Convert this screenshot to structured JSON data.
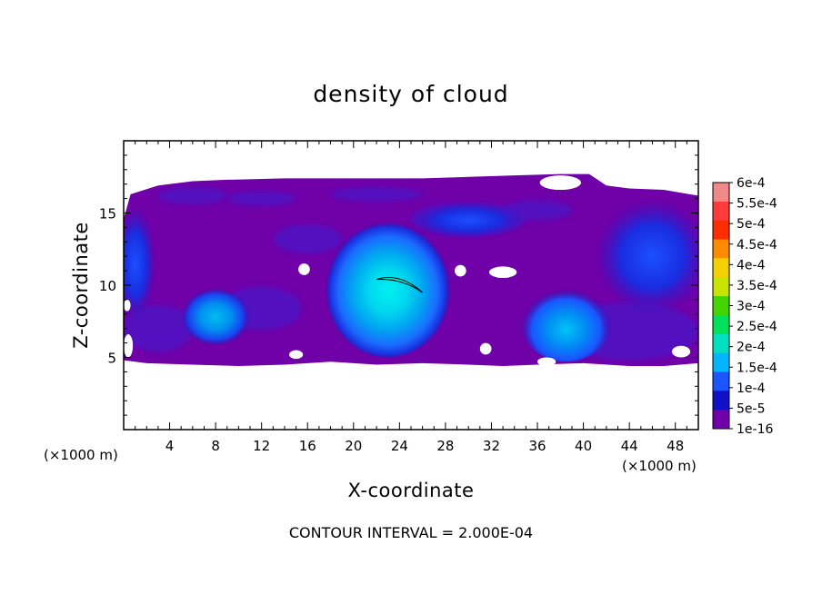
{
  "chart_data": {
    "type": "heatmap",
    "title": "density of cloud",
    "xlabel": "X-coordinate",
    "ylabel": "Z-coordinate",
    "x_unit_left": "(×1000 m)",
    "x_unit_right": "(×1000 m)",
    "xlim": [
      0,
      50
    ],
    "ylim": [
      0,
      20
    ],
    "x_ticks": [
      4,
      8,
      12,
      16,
      20,
      24,
      28,
      32,
      36,
      40,
      44,
      48
    ],
    "x_tick_labels": [
      "4",
      "8",
      "12",
      "16",
      "20",
      "24",
      "28",
      "32",
      "36",
      "40",
      "44",
      "48"
    ],
    "y_ticks": [
      5,
      10,
      15
    ],
    "y_tick_labels": [
      "5",
      "10",
      "15"
    ],
    "contour_interval_text": "CONTOUR INTERVAL = 2.000E-04",
    "colorbar": {
      "labels": [
        "6e-4",
        "5.5e-4",
        "5e-4",
        "4.5e-4",
        "4e-4",
        "3.5e-4",
        "3e-4",
        "2.5e-4",
        "2e-4",
        "1.5e-4",
        "1e-4",
        "5e-5",
        "1e-16"
      ],
      "colors": [
        "#f08a8a",
        "#ff3b3b",
        "#ff2d00",
        "#ff8c00",
        "#f5d000",
        "#c8e400",
        "#44d400",
        "#00e05a",
        "#00e0c0",
        "#00b4ff",
        "#1a55ff",
        "#1010c8",
        "#7000a8"
      ]
    },
    "cloud_layer": {
      "base_z": 4.5,
      "top_z": 17.3,
      "background_level_color": "#7000a8"
    },
    "features": [
      {
        "x": 23,
        "z": 9.8,
        "rx": 5.5,
        "rz": 4.8,
        "max_value": 0.0002
      },
      {
        "x": 38.5,
        "z": 7.5,
        "rx": 4.0,
        "rz": 2.8,
        "max_value": 0.00015
      },
      {
        "x": 8,
        "z": 7.8,
        "rx": 3.0,
        "rz": 2.0,
        "max_value": 0.00015
      },
      {
        "x": 1,
        "z": 11.5,
        "rx": 1.8,
        "rz": 4.0,
        "max_value": 5e-05
      },
      {
        "x": 46,
        "z": 12.0,
        "rx": 5.0,
        "rz": 4.0,
        "max_value": 5e-05
      },
      {
        "x": 30,
        "z": 14.5,
        "rx": 5.0,
        "rz": 1.3,
        "max_value": 5e-05
      }
    ]
  }
}
